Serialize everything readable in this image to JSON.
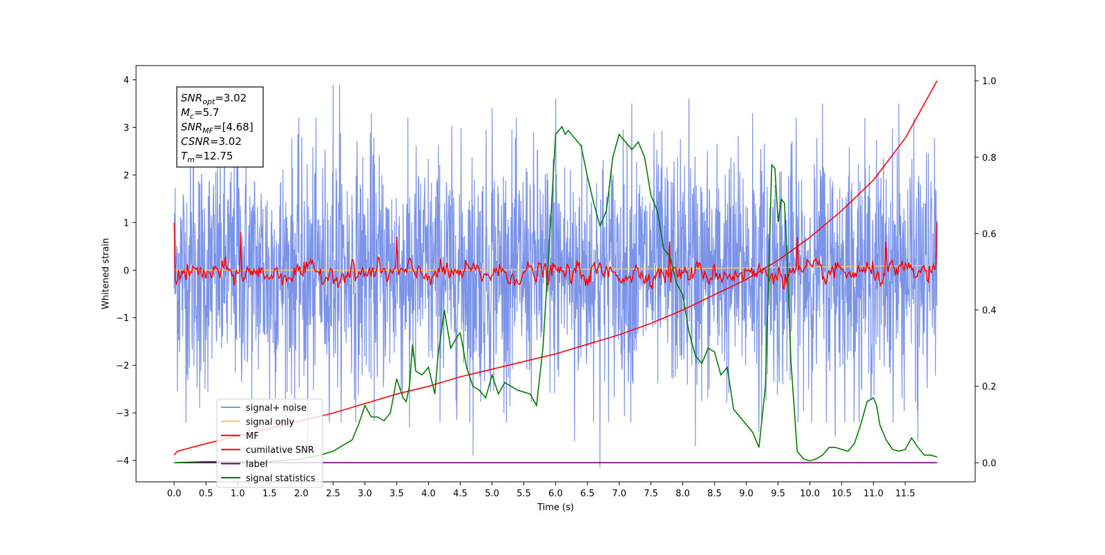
{
  "chart_data": {
    "type": "line",
    "xlabel": "Time (s)",
    "ylabel_left": "Whitened strain",
    "ylabel_right": "",
    "xlim": [
      -0.6,
      12.6
    ],
    "ylim_left": [
      -4.45,
      4.3
    ],
    "ylim_right": [
      -0.05,
      1.04
    ],
    "x_ticks": [
      0.0,
      0.5,
      1.0,
      1.5,
      2.0,
      2.5,
      3.0,
      3.5,
      4.0,
      4.5,
      5.0,
      5.5,
      6.0,
      6.5,
      7.0,
      7.5,
      8.0,
      8.5,
      9.0,
      9.5,
      10.0,
      10.5,
      11.0,
      11.5
    ],
    "x_tick_labels": [
      "0.0",
      "0.5",
      "1.0",
      "1.5",
      "2.0",
      "2.5",
      "3.0",
      "3.5",
      "4.0",
      "4.5",
      "5.0",
      "5.5",
      "6.0",
      "6.5",
      "7.0",
      "7.5",
      "8.0",
      "8.5",
      "9.0",
      "9.5",
      "10.0",
      "10.5",
      "11.0",
      "11.5"
    ],
    "y_ticks_left": [
      -4,
      -3,
      -2,
      -1,
      0,
      1,
      2,
      3,
      4
    ],
    "y_tick_labels_left": [
      "−4",
      "−3",
      "−2",
      "−1",
      "0",
      "1",
      "2",
      "3",
      "4"
    ],
    "y_ticks_right": [
      0.0,
      0.2,
      0.4,
      0.6,
      0.8,
      1.0
    ],
    "y_tick_labels_right": [
      "0.0",
      "0.2",
      "0.4",
      "0.6",
      "0.8",
      "1.0"
    ],
    "grid": false,
    "legend_position": "lower-left",
    "annotation": {
      "lines": [
        {
          "sym": "SNR",
          "sub": "opt",
          "value": "=3.02"
        },
        {
          "sym": "M",
          "sub": "c",
          "value": "=5.7"
        },
        {
          "sym": "SNR",
          "sub": "MF",
          "value": "=[4.68]"
        },
        {
          "sym": "CSNR",
          "sub": "",
          "value": "=3.02"
        },
        {
          "sym": "T",
          "sub": "m",
          "value": "=12.75"
        }
      ]
    },
    "series": [
      {
        "name": "signal+ noise",
        "axis": "left",
        "color": "#7b93e8",
        "kind": "noise",
        "x_range": [
          0.0,
          12.0
        ],
        "band": [
          -2.6,
          2.6
        ],
        "peaks_up": [
          [
            0.3,
            3.2
          ],
          [
            1.0,
            3.5
          ],
          [
            1.5,
            3.2
          ],
          [
            2.5,
            3.9
          ],
          [
            2.6,
            3.9
          ],
          [
            3.1,
            3.3
          ],
          [
            5.0,
            3.4
          ],
          [
            6.0,
            3.6
          ],
          [
            7.2,
            3.5
          ],
          [
            8.1,
            3.6
          ],
          [
            9.1,
            3.3
          ],
          [
            10.2,
            3.5
          ],
          [
            11.4,
            3.5
          ]
        ],
        "peaks_down": [
          [
            0.4,
            -2.9
          ],
          [
            1.5,
            -3.0
          ],
          [
            2.1,
            -3.8
          ],
          [
            3.7,
            -3.3
          ],
          [
            4.7,
            -3.9
          ],
          [
            6.3,
            -3.6
          ],
          [
            6.7,
            -4.15
          ],
          [
            8.2,
            -3.7
          ],
          [
            9.2,
            -3.4
          ],
          [
            10.4,
            -3.5
          ],
          [
            11.7,
            -3.6
          ]
        ]
      },
      {
        "name": "signal only",
        "axis": "left",
        "color": "#f5c26b",
        "kind": "line",
        "x": [
          0.0,
          4.0,
          8.0,
          12.0
        ],
        "y": [
          0.0,
          0.0,
          0.03,
          0.1
        ]
      },
      {
        "name": "MF",
        "axis": "left",
        "color": "#ff0000",
        "kind": "mf",
        "x_range": [
          0.0,
          12.0
        ],
        "start": 1.0,
        "end": 1.0,
        "peaks": [
          [
            1.05,
            0.8
          ],
          [
            3.5,
            0.7
          ],
          [
            7.8,
            0.6
          ],
          [
            9.8,
            0.7
          ],
          [
            11.2,
            0.6
          ]
        ]
      },
      {
        "name": "cumilative SNR",
        "axis": "right",
        "color": "#ff0000",
        "kind": "line",
        "x": [
          0.0,
          0.05,
          0.5,
          1.0,
          1.5,
          2.0,
          2.5,
          3.0,
          3.5,
          4.0,
          4.5,
          5.0,
          5.5,
          6.0,
          6.5,
          7.0,
          7.5,
          8.0,
          8.5,
          9.0,
          9.5,
          10.0,
          10.5,
          11.0,
          11.5,
          12.0
        ],
        "y": [
          0.02,
          0.03,
          0.05,
          0.07,
          0.09,
          0.11,
          0.13,
          0.155,
          0.18,
          0.2,
          0.225,
          0.245,
          0.265,
          0.285,
          0.31,
          0.335,
          0.365,
          0.4,
          0.44,
          0.48,
          0.53,
          0.59,
          0.66,
          0.74,
          0.85,
          1.0
        ]
      },
      {
        "name": "label",
        "axis": "right",
        "color": "#6a006a",
        "kind": "line",
        "x": [
          0.0,
          12.0
        ],
        "y": [
          0.0,
          0.0
        ]
      },
      {
        "name": "signal statistics",
        "axis": "right",
        "color": "#007a00",
        "kind": "line",
        "x": [
          0.0,
          0.5,
          1.0,
          1.5,
          2.0,
          2.3,
          2.5,
          2.7,
          2.8,
          2.9,
          3.0,
          3.1,
          3.2,
          3.3,
          3.4,
          3.5,
          3.6,
          3.65,
          3.7,
          3.75,
          3.8,
          3.9,
          4.0,
          4.1,
          4.15,
          4.25,
          4.35,
          4.45,
          4.5,
          4.6,
          4.7,
          4.8,
          4.9,
          5.0,
          5.1,
          5.2,
          5.4,
          5.6,
          5.7,
          5.8,
          5.9,
          6.0,
          6.1,
          6.15,
          6.2,
          6.3,
          6.4,
          6.5,
          6.6,
          6.7,
          6.8,
          6.9,
          7.0,
          7.1,
          7.2,
          7.3,
          7.4,
          7.5,
          7.6,
          7.7,
          7.8,
          7.9,
          8.0,
          8.1,
          8.2,
          8.3,
          8.4,
          8.5,
          8.6,
          8.7,
          8.8,
          8.9,
          9.0,
          9.1,
          9.2,
          9.3,
          9.4,
          9.45,
          9.5,
          9.55,
          9.6,
          9.65,
          9.7,
          9.8,
          9.9,
          10.0,
          10.1,
          10.2,
          10.3,
          10.4,
          10.5,
          10.6,
          10.7,
          10.8,
          10.9,
          11.0,
          11.05,
          11.1,
          11.2,
          11.3,
          11.4,
          11.5,
          11.6,
          11.7,
          11.8,
          11.9,
          12.0
        ],
        "y": [
          0.0,
          0.003,
          0.002,
          0.003,
          0.01,
          0.02,
          0.03,
          0.05,
          0.06,
          0.1,
          0.15,
          0.12,
          0.12,
          0.11,
          0.13,
          0.22,
          0.17,
          0.16,
          0.2,
          0.31,
          0.24,
          0.23,
          0.25,
          0.18,
          0.28,
          0.4,
          0.3,
          0.33,
          0.34,
          0.25,
          0.2,
          0.19,
          0.17,
          0.23,
          0.18,
          0.21,
          0.19,
          0.18,
          0.15,
          0.3,
          0.57,
          0.86,
          0.88,
          0.86,
          0.87,
          0.85,
          0.83,
          0.75,
          0.68,
          0.62,
          0.66,
          0.8,
          0.86,
          0.84,
          0.82,
          0.84,
          0.8,
          0.7,
          0.66,
          0.56,
          0.54,
          0.47,
          0.44,
          0.34,
          0.28,
          0.26,
          0.3,
          0.29,
          0.23,
          0.25,
          0.14,
          0.12,
          0.1,
          0.08,
          0.04,
          0.2,
          0.78,
          0.77,
          0.63,
          0.69,
          0.68,
          0.5,
          0.27,
          0.03,
          0.01,
          0.005,
          0.01,
          0.02,
          0.04,
          0.04,
          0.035,
          0.03,
          0.05,
          0.1,
          0.16,
          0.17,
          0.15,
          0.1,
          0.06,
          0.035,
          0.03,
          0.035,
          0.065,
          0.04,
          0.02,
          0.02,
          0.015
        ]
      }
    ]
  }
}
